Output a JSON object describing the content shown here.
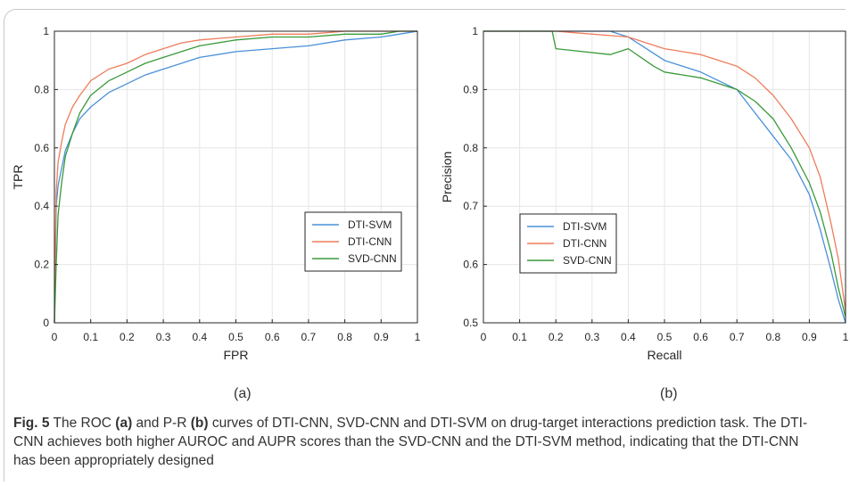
{
  "caption": {
    "label": "Fig. 5",
    "part1": " The ROC ",
    "ref_a": "(a)",
    "part2": " and P-R ",
    "ref_b": "(b)",
    "part3": " curves of DTI-CNN, SVD-CNN and DTI-SVM on drug-target interactions prediction task. The DTI-CNN achieves both higher AUROC and AUPR scores than the SVD-CNN and the DTI-SVM method, indicating that the DTI-CNN has been appropriately designed"
  },
  "panel_labels": {
    "a": "(a)",
    "b": "(b)"
  },
  "colors": {
    "DTI-SVM": "#4a90d9",
    "DTI-CNN": "#ee7d5b",
    "SVD-CNN": "#3a9a3a"
  },
  "chart_data": [
    {
      "type": "line",
      "panel": "a",
      "title": "",
      "xlabel": "FPR",
      "ylabel": "TPR",
      "xlim": [
        0,
        1
      ],
      "ylim": [
        0,
        1
      ],
      "xticks": [
        0,
        0.1,
        0.2,
        0.3,
        0.4,
        0.5,
        0.6,
        0.7,
        0.8,
        0.9,
        1
      ],
      "yticks": [
        0,
        0.2,
        0.4,
        0.6,
        0.8,
        1
      ],
      "grid": true,
      "legend": "bottom-right",
      "series": [
        {
          "name": "DTI-SVM",
          "color": "#4a90d9",
          "x": [
            0,
            0.005,
            0.01,
            0.02,
            0.03,
            0.05,
            0.07,
            0.1,
            0.15,
            0.2,
            0.25,
            0.3,
            0.35,
            0.4,
            0.5,
            0.6,
            0.7,
            0.8,
            0.9,
            0.95,
            1
          ],
          "y": [
            0,
            0.4,
            0.47,
            0.53,
            0.59,
            0.65,
            0.7,
            0.74,
            0.79,
            0.82,
            0.85,
            0.87,
            0.89,
            0.91,
            0.93,
            0.94,
            0.95,
            0.97,
            0.98,
            0.99,
            1
          ]
        },
        {
          "name": "DTI-CNN",
          "color": "#ee7d5b",
          "x": [
            0,
            0.005,
            0.01,
            0.02,
            0.03,
            0.05,
            0.07,
            0.1,
            0.15,
            0.2,
            0.25,
            0.3,
            0.35,
            0.4,
            0.5,
            0.6,
            0.7,
            0.8,
            0.9,
            0.95,
            1
          ],
          "y": [
            0,
            0.45,
            0.55,
            0.62,
            0.68,
            0.74,
            0.78,
            0.83,
            0.87,
            0.89,
            0.92,
            0.94,
            0.96,
            0.97,
            0.98,
            0.99,
            0.99,
            1,
            1,
            1,
            1
          ]
        },
        {
          "name": "SVD-CNN",
          "color": "#3a9a3a",
          "x": [
            0,
            0.005,
            0.01,
            0.02,
            0.03,
            0.05,
            0.07,
            0.1,
            0.15,
            0.2,
            0.25,
            0.3,
            0.35,
            0.4,
            0.5,
            0.6,
            0.7,
            0.8,
            0.9,
            0.95,
            1
          ],
          "y": [
            0,
            0.2,
            0.37,
            0.48,
            0.57,
            0.65,
            0.72,
            0.78,
            0.83,
            0.86,
            0.89,
            0.91,
            0.93,
            0.95,
            0.97,
            0.98,
            0.98,
            0.99,
            0.99,
            1,
            1
          ]
        }
      ]
    },
    {
      "type": "line",
      "panel": "b",
      "title": "",
      "xlabel": "Recall",
      "ylabel": "Precision",
      "xlim": [
        0,
        1
      ],
      "ylim": [
        0.5,
        1
      ],
      "xticks": [
        0,
        0.1,
        0.2,
        0.3,
        0.4,
        0.5,
        0.6,
        0.7,
        0.8,
        0.9,
        1
      ],
      "yticks": [
        0.5,
        0.6,
        0.7,
        0.8,
        0.9,
        1
      ],
      "grid": true,
      "legend": "middle-left",
      "series": [
        {
          "name": "DTI-SVM",
          "color": "#4a90d9",
          "x": [
            0,
            0.35,
            0.4,
            0.45,
            0.5,
            0.6,
            0.7,
            0.75,
            0.8,
            0.85,
            0.9,
            0.93,
            0.96,
            0.98,
            1
          ],
          "y": [
            1,
            1,
            0.99,
            0.97,
            0.95,
            0.93,
            0.9,
            0.86,
            0.82,
            0.78,
            0.72,
            0.66,
            0.59,
            0.54,
            0.5
          ]
        },
        {
          "name": "DTI-CNN",
          "color": "#ee7d5b",
          "x": [
            0,
            0.2,
            0.4,
            0.45,
            0.5,
            0.6,
            0.7,
            0.75,
            0.8,
            0.85,
            0.9,
            0.93,
            0.96,
            0.98,
            1
          ],
          "y": [
            1,
            1,
            0.99,
            0.98,
            0.97,
            0.96,
            0.94,
            0.92,
            0.89,
            0.85,
            0.8,
            0.75,
            0.67,
            0.61,
            0.52
          ]
        },
        {
          "name": "SVD-CNN",
          "color": "#3a9a3a",
          "x": [
            0,
            0.19,
            0.2,
            0.35,
            0.4,
            0.47,
            0.5,
            0.6,
            0.7,
            0.75,
            0.8,
            0.85,
            0.9,
            0.93,
            0.96,
            0.98,
            1
          ],
          "y": [
            1,
            1,
            0.97,
            0.96,
            0.97,
            0.94,
            0.93,
            0.92,
            0.9,
            0.88,
            0.85,
            0.8,
            0.74,
            0.69,
            0.62,
            0.56,
            0.51
          ]
        }
      ]
    }
  ]
}
